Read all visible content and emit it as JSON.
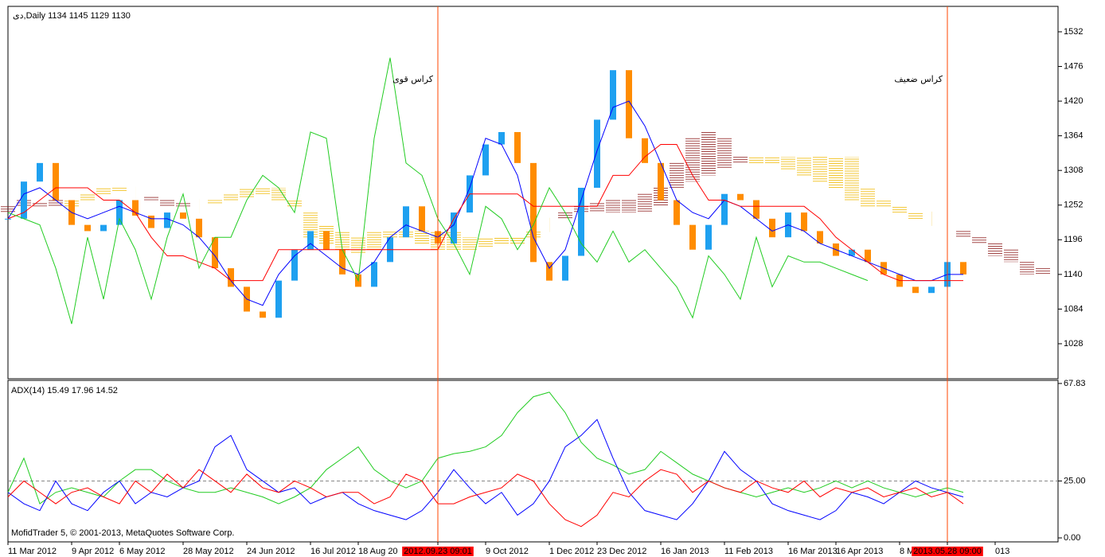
{
  "chart_data": [
    {
      "type": "ichimoku",
      "title": "دی,Daily  1134 1145 1129 1130",
      "ylim": [
        971.4,
        1573.1
      ],
      "yticks": [
        1028,
        1084,
        1140,
        1196,
        1252,
        1308,
        1364,
        1420,
        1476,
        1532
      ],
      "series": [
        {
          "style": "candle",
          "color": "#1ea0f0",
          "down_color": "#ff8c00",
          "values": [
            1230,
            1290,
            1320,
            1260,
            1220,
            1210,
            1220,
            1260,
            1235,
            1215,
            1240,
            1230,
            1200,
            1150,
            1120,
            1080,
            1070,
            1130,
            1180,
            1210,
            1180,
            1140,
            1120,
            1160,
            1200,
            1250,
            1210,
            1190,
            1240,
            1300,
            1350,
            1370,
            1320,
            1160,
            1130,
            1170,
            1280,
            1390,
            1470,
            1360,
            1320,
            1260,
            1220,
            1180,
            1220,
            1270,
            1260,
            1230,
            1200,
            1240,
            1210,
            1190,
            1170,
            1180,
            1160,
            1140,
            1120,
            1110,
            1120,
            1160,
            1140,
            null,
            null,
            null,
            null,
            null
          ]
        },
        {
          "style": "line",
          "color": "#0000ff",
          "values": [
            1230,
            1270,
            1280,
            1260,
            1240,
            1230,
            1240,
            1250,
            1240,
            1230,
            1230,
            1220,
            1200,
            1170,
            1130,
            1100,
            1090,
            1140,
            1170,
            1190,
            1170,
            1150,
            1140,
            1160,
            1200,
            1220,
            1210,
            1200,
            1220,
            1280,
            1360,
            1350,
            1300,
            1200,
            1150,
            1180,
            1260,
            1340,
            1410,
            1420,
            1380,
            1320,
            1260,
            1240,
            1230,
            1260,
            1250,
            1230,
            1210,
            1220,
            1210,
            1190,
            1180,
            1170,
            1160,
            1150,
            1140,
            1130,
            1130,
            1140,
            1140,
            null,
            null,
            null,
            null,
            null
          ]
        },
        {
          "style": "line",
          "color": "#ff0000",
          "values": [
            1230,
            1240,
            1260,
            1280,
            1280,
            1280,
            1260,
            1260,
            1240,
            1200,
            1170,
            1170,
            1160,
            1150,
            1130,
            1130,
            1130,
            1180,
            1180,
            1180,
            1180,
            1180,
            1180,
            1180,
            1180,
            1180,
            1180,
            1180,
            1230,
            1270,
            1270,
            1270,
            1270,
            1250,
            1250,
            1250,
            1250,
            1250,
            1300,
            1300,
            1330,
            1350,
            1350,
            1300,
            1260,
            1260,
            1250,
            1250,
            1250,
            1250,
            1250,
            1230,
            1200,
            1180,
            1160,
            1140,
            1130,
            1130,
            1130,
            1130,
            1130,
            null,
            null,
            null,
            null,
            null
          ]
        },
        {
          "style": "line",
          "color": "#22cc22",
          "values": [
            1240,
            1230,
            1220,
            1150,
            1060,
            1200,
            1100,
            1230,
            1180,
            1100,
            1200,
            1270,
            1150,
            1200,
            1200,
            1260,
            1300,
            1280,
            1240,
            1370,
            1360,
            1180,
            1130,
            1360,
            1490,
            1320,
            1300,
            1230,
            1190,
            1140,
            1250,
            1230,
            1180,
            1220,
            1280,
            1240,
            1190,
            1160,
            1210,
            1160,
            1180,
            1150,
            1120,
            1070,
            1170,
            1140,
            1100,
            1200,
            1120,
            1170,
            1160,
            1160,
            1150,
            1140,
            1130,
            null,
            null,
            null,
            null,
            null,
            null,
            null,
            null,
            null,
            null,
            null
          ]
        }
      ],
      "cloud": {
        "up_color": "#8b1a1a",
        "down_color": "#f0b800",
        "a": [
          1250,
          1260,
          1255,
          1260,
          1250,
          1260,
          1270,
          1275,
          1270,
          1265,
          1260,
          1255,
          1250,
          1255,
          1260,
          1265,
          1270,
          1260,
          1250,
          1200,
          1190,
          1180,
          1175,
          1180,
          1200,
          1200,
          1190,
          1180,
          1180,
          1180,
          1185,
          1190,
          1190,
          1200,
          1220,
          1240,
          1250,
          1255,
          1260,
          1260,
          1270,
          1280,
          1320,
          1360,
          1370,
          1360,
          1330,
          1320,
          1320,
          1310,
          1300,
          1290,
          1280,
          1260,
          1250,
          1250,
          1240,
          1230,
          1230,
          1220,
          1210,
          1200,
          1190,
          1180,
          1160,
          1150
        ],
        "b": [
          1240,
          1250,
          1250,
          1250,
          1260,
          1270,
          1280,
          1280,
          1270,
          1260,
          1250,
          1250,
          1250,
          1260,
          1270,
          1280,
          1280,
          1280,
          1260,
          1240,
          1220,
          1210,
          1200,
          1210,
          1210,
          1210,
          1210,
          1210,
          1210,
          1200,
          1200,
          1200,
          1200,
          1210,
          1220,
          1230,
          1240,
          1240,
          1240,
          1240,
          1240,
          1250,
          1280,
          1290,
          1300,
          1310,
          1320,
          1330,
          1330,
          1330,
          1330,
          1330,
          1330,
          1330,
          1280,
          1260,
          1250,
          1240,
          1230,
          1220,
          1200,
          1190,
          1170,
          1160,
          1140,
          1140
        ]
      },
      "annotations": [
        {
          "text": "کراس قوی",
          "at": "2012.09.23 09:01",
          "color": "#ff4500"
        },
        {
          "text": "کراس ضعیف",
          "at": "2013.05.28 09:00",
          "color": "#ff4500"
        }
      ]
    },
    {
      "type": "line",
      "title": "ADX(14) 15.49 17.96 14.52",
      "copyright": "MofidTrader 5, © 2001-2013, MetaQuotes Software Corp.",
      "ylim": [
        -1.75,
        69.2
      ],
      "yticks": [
        {
          "value": 0,
          "label": "0.00"
        },
        {
          "value": 25,
          "label": "25.00"
        },
        {
          "value": 67.83,
          "label": "67.83"
        }
      ],
      "levels": [
        25
      ],
      "highlight_color": "#ff0000",
      "categories": [
        "11 Mar 2012",
        null,
        null,
        null,
        "9 Apr 2012",
        null,
        null,
        "6 May 2012",
        null,
        null,
        null,
        "28 May 2012",
        null,
        null,
        null,
        "24 Jun 2012",
        null,
        null,
        null,
        "16 Jul 2012",
        null,
        null,
        "18 Aug 20",
        null,
        null,
        null,
        null,
        "2012.09.23 09:01",
        null,
        null,
        "9 Oct 2012",
        null,
        null,
        null,
        "1 Dec 2012",
        null,
        null,
        "23 Dec 2012",
        null,
        null,
        null,
        "16 Jan 2013",
        null,
        null,
        null,
        "11 Feb 2013",
        null,
        null,
        null,
        "16 Mar 2013",
        null,
        null,
        "16 Apr 2013",
        null,
        null,
        null,
        "8 M",
        null,
        null,
        "2013.05.28 09:00",
        null,
        null,
        "013",
        null,
        null,
        null
      ],
      "series": [
        {
          "color": "#22cc22",
          "values": [
            20,
            35,
            15,
            20,
            22,
            20,
            18,
            25,
            30,
            30,
            25,
            22,
            20,
            20,
            22,
            20,
            18,
            15,
            18,
            22,
            30,
            35,
            40,
            30,
            25,
            22,
            25,
            35,
            37,
            38,
            40,
            45,
            55,
            62,
            64,
            55,
            42,
            35,
            32,
            28,
            30,
            38,
            33,
            28,
            25,
            22,
            20,
            18,
            20,
            22,
            20,
            22,
            25,
            22,
            25,
            22,
            20,
            18,
            20,
            22,
            20,
            null,
            null,
            null,
            null,
            null
          ]
        },
        {
          "color": "#0000ff",
          "values": [
            20,
            15,
            12,
            25,
            15,
            12,
            20,
            25,
            15,
            20,
            18,
            22,
            25,
            40,
            45,
            30,
            25,
            20,
            22,
            15,
            18,
            20,
            15,
            12,
            10,
            8,
            12,
            20,
            30,
            22,
            15,
            20,
            10,
            15,
            25,
            40,
            45,
            52,
            35,
            20,
            12,
            10,
            8,
            15,
            25,
            38,
            30,
            25,
            15,
            12,
            10,
            8,
            12,
            20,
            18,
            15,
            20,
            25,
            22,
            20,
            18,
            null,
            null,
            null,
            null,
            null
          ]
        },
        {
          "color": "#ff0000",
          "values": [
            18,
            25,
            20,
            15,
            20,
            22,
            18,
            15,
            25,
            20,
            28,
            22,
            30,
            25,
            20,
            28,
            22,
            20,
            25,
            22,
            18,
            20,
            20,
            15,
            18,
            28,
            25,
            15,
            15,
            18,
            20,
            22,
            28,
            25,
            15,
            8,
            5,
            10,
            20,
            18,
            25,
            30,
            28,
            20,
            25,
            22,
            20,
            25,
            22,
            20,
            25,
            18,
            22,
            20,
            22,
            18,
            20,
            22,
            18,
            20,
            15,
            null,
            null,
            null,
            null,
            null
          ]
        }
      ]
    }
  ]
}
